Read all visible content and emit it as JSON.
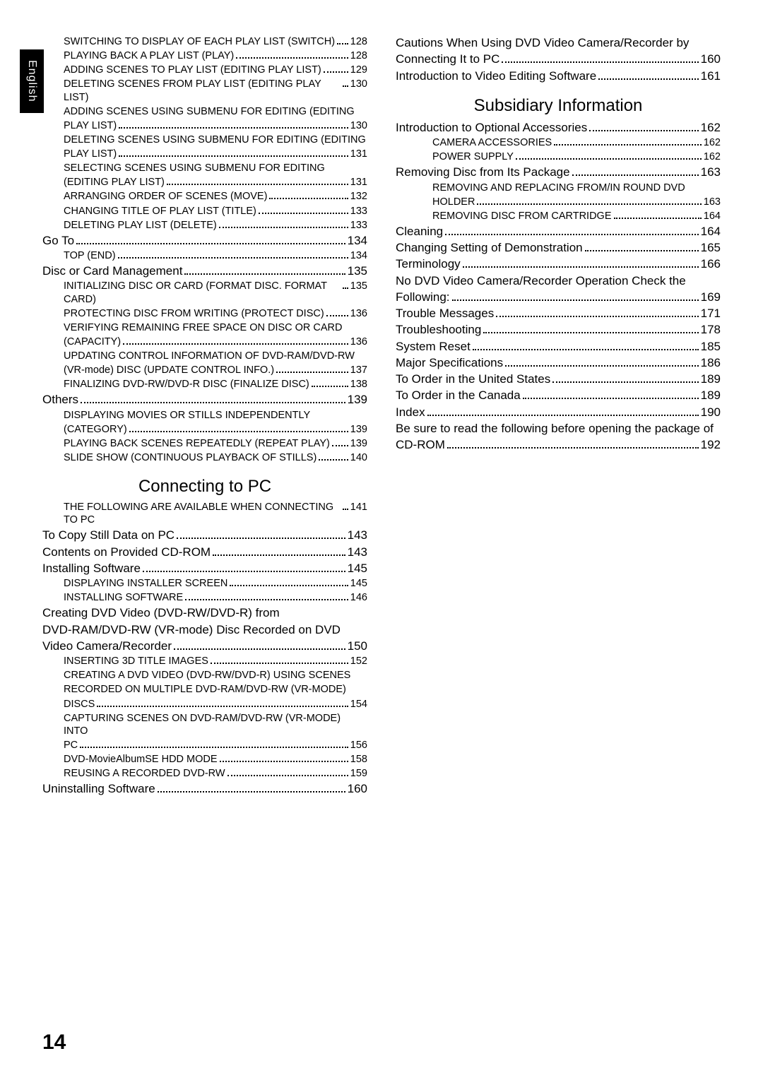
{
  "sideTab": "English",
  "pageNumber": "14",
  "leftColumn": [
    {
      "kind": "entry",
      "size": "small",
      "indent": 1,
      "label": "SWITCHING TO DISPLAY OF EACH PLAY LIST (SWITCH)",
      "page": "128"
    },
    {
      "kind": "entry",
      "size": "small",
      "indent": 1,
      "label": "PLAYING BACK A PLAY LIST (PLAY)",
      "page": "128"
    },
    {
      "kind": "entry",
      "size": "small",
      "indent": 1,
      "label": "ADDING SCENES TO PLAY LIST (EDITING PLAY LIST)",
      "page": "129"
    },
    {
      "kind": "entry",
      "size": "small",
      "indent": 1,
      "label": "DELETING SCENES FROM PLAY LIST (EDITING PLAY LIST)",
      "page": "130"
    },
    {
      "kind": "entry",
      "size": "small",
      "indent": 1,
      "label": "ADDING SCENES USING SUBMENU FOR EDITING (EDITING PLAY LIST)",
      "page": "130"
    },
    {
      "kind": "entry",
      "size": "small",
      "indent": 1,
      "label": "DELETING SCENES USING SUBMENU FOR EDITING (EDITING PLAY LIST)",
      "page": "131"
    },
    {
      "kind": "entry",
      "size": "small",
      "indent": 1,
      "label": "SELECTING SCENES USING SUBMENU FOR EDITING (EDITING PLAY LIST)",
      "page": "131"
    },
    {
      "kind": "entry",
      "size": "small",
      "indent": 1,
      "label": "ARRANGING ORDER OF SCENES (MOVE)",
      "page": "132"
    },
    {
      "kind": "entry",
      "size": "small",
      "indent": 1,
      "label": "CHANGING TITLE OF PLAY LIST (TITLE)",
      "page": "133"
    },
    {
      "kind": "entry",
      "size": "small",
      "indent": 1,
      "label": "DELETING PLAY LIST (DELETE)",
      "page": "133"
    },
    {
      "kind": "entry",
      "size": "large",
      "indent": 0,
      "label": "Go To",
      "page": "134"
    },
    {
      "kind": "entry",
      "size": "small",
      "indent": 1,
      "label": "TOP (END)",
      "page": "134"
    },
    {
      "kind": "entry",
      "size": "large",
      "indent": 0,
      "label": "Disc or Card Management",
      "page": "135"
    },
    {
      "kind": "entry",
      "size": "small",
      "indent": 1,
      "label": "INITIALIZING DISC OR CARD (FORMAT DISC. FORMAT CARD)",
      "page": "135"
    },
    {
      "kind": "entry",
      "size": "small",
      "indent": 1,
      "label": "PROTECTING DISC FROM WRITING (PROTECT DISC)",
      "page": "136"
    },
    {
      "kind": "entry",
      "size": "small",
      "indent": 1,
      "label": "VERIFYING REMAINING FREE SPACE ON DISC OR CARD (CAPACITY)",
      "page": "136"
    },
    {
      "kind": "entry",
      "size": "small",
      "indent": 1,
      "label": "UPDATING CONTROL INFORMATION OF DVD-RAM/DVD-RW (VR-mode) DISC (UPDATE CONTROL INFO.)",
      "page": "137"
    },
    {
      "kind": "entry",
      "size": "small",
      "indent": 1,
      "label": "FINALIZING DVD-RW/DVD-R DISC (FINALIZE DISC)",
      "page": "138"
    },
    {
      "kind": "entry",
      "size": "large",
      "indent": 0,
      "label": "Others",
      "page": "139"
    },
    {
      "kind": "entry",
      "size": "small",
      "indent": 1,
      "label": "DISPLAYING MOVIES OR STILLS INDEPENDENTLY (CATEGORY)",
      "page": "139"
    },
    {
      "kind": "entry",
      "size": "small",
      "indent": 1,
      "label": "PLAYING BACK SCENES REPEATEDLY (REPEAT PLAY)",
      "page": "139"
    },
    {
      "kind": "entry",
      "size": "small",
      "indent": 1,
      "label": "SLIDE SHOW (CONTINUOUS PLAYBACK OF STILLS)",
      "page": "140"
    },
    {
      "kind": "heading",
      "label": "Connecting to PC"
    },
    {
      "kind": "entry",
      "size": "small",
      "indent": 1,
      "label": "THE FOLLOWING ARE AVAILABLE WHEN CONNECTING TO PC",
      "page": "141"
    },
    {
      "kind": "entry",
      "size": "large",
      "indent": 0,
      "label": "To Copy Still Data on PC",
      "page": "143"
    },
    {
      "kind": "entry",
      "size": "large",
      "indent": 0,
      "label": "Contents on Provided CD-ROM",
      "page": "143"
    },
    {
      "kind": "entry",
      "size": "large",
      "indent": 0,
      "label": "Installing Software",
      "page": "145"
    },
    {
      "kind": "entry",
      "size": "small",
      "indent": 1,
      "label": "DISPLAYING INSTALLER SCREEN",
      "page": "145"
    },
    {
      "kind": "entry",
      "size": "small",
      "indent": 1,
      "label": "INSTALLING SOFTWARE",
      "page": "146"
    },
    {
      "kind": "entry",
      "size": "large",
      "indent": 0,
      "label": "Creating DVD Video (DVD-RW/DVD-R) from DVD-RAM/DVD-RW (VR-mode) Disc Recorded on DVD Video Camera/Recorder",
      "page": "150"
    },
    {
      "kind": "entry",
      "size": "small",
      "indent": 1,
      "label": "INSERTING 3D TITLE IMAGES",
      "page": "152"
    },
    {
      "kind": "entry",
      "size": "small",
      "indent": 1,
      "label": "CREATING A DVD VIDEO (DVD-RW/DVD-R) USING SCENES RECORDED ON MULTIPLE DVD-RAM/DVD-RW (VR-MODE) DISCS",
      "page": "154"
    },
    {
      "kind": "entry",
      "size": "small",
      "indent": 1,
      "label": "CAPTURING SCENES ON DVD-RAM/DVD-RW (VR-MODE) INTO PC",
      "page": "156"
    },
    {
      "kind": "entry",
      "size": "small",
      "indent": 1,
      "label": "DVD-MovieAlbumSE HDD MODE",
      "page": "158"
    },
    {
      "kind": "entry",
      "size": "small",
      "indent": 1,
      "label": "REUSING A RECORDED DVD-RW",
      "page": "159"
    },
    {
      "kind": "entry",
      "size": "large",
      "indent": 0,
      "label": "Uninstalling Software",
      "page": "160"
    }
  ],
  "rightColumn": [
    {
      "kind": "entry",
      "size": "large",
      "indent": 0,
      "label": "Cautions When Using DVD Video Camera/Recorder by Connecting It to PC",
      "page": "160"
    },
    {
      "kind": "entry",
      "size": "large",
      "indent": 0,
      "label": "Introduction to Video Editing Software",
      "page": "161"
    },
    {
      "kind": "heading",
      "label": "Subsidiary Information"
    },
    {
      "kind": "entry",
      "size": "large",
      "indent": 0,
      "label": "Introduction to Optional Accessories",
      "page": "162"
    },
    {
      "kind": "entry",
      "size": "small",
      "indent": 2,
      "label": "CAMERA ACCESSORIES",
      "page": "162"
    },
    {
      "kind": "entry",
      "size": "small",
      "indent": 2,
      "label": "POWER SUPPLY",
      "page": "162"
    },
    {
      "kind": "entry",
      "size": "large",
      "indent": 0,
      "label": "Removing Disc from Its Package",
      "page": "163"
    },
    {
      "kind": "entry",
      "size": "small",
      "indent": 2,
      "label": "REMOVING AND REPLACING FROM/IN ROUND DVD HOLDER",
      "page": "163"
    },
    {
      "kind": "entry",
      "size": "small",
      "indent": 2,
      "label": "REMOVING DISC FROM CARTRIDGE",
      "page": "164"
    },
    {
      "kind": "entry",
      "size": "large",
      "indent": 0,
      "label": "Cleaning",
      "page": "164"
    },
    {
      "kind": "entry",
      "size": "large",
      "indent": 0,
      "label": "Changing Setting of Demonstration",
      "page": "165"
    },
    {
      "kind": "entry",
      "size": "large",
      "indent": 0,
      "label": "Terminology",
      "page": "166"
    },
    {
      "kind": "entry",
      "size": "large",
      "indent": 0,
      "label": "No DVD Video Camera/Recorder Operation Check the Following:",
      "page": "169"
    },
    {
      "kind": "entry",
      "size": "large",
      "indent": 0,
      "label": "Trouble Messages",
      "page": "171"
    },
    {
      "kind": "entry",
      "size": "large",
      "indent": 0,
      "label": "Troubleshooting",
      "page": "178"
    },
    {
      "kind": "entry",
      "size": "large",
      "indent": 0,
      "label": "System Reset",
      "page": "185"
    },
    {
      "kind": "entry",
      "size": "large",
      "indent": 0,
      "label": "Major Specifications",
      "page": "186"
    },
    {
      "kind": "entry",
      "size": "large",
      "indent": 0,
      "label": "To Order in the United States",
      "page": "189"
    },
    {
      "kind": "entry",
      "size": "large",
      "indent": 0,
      "label": "To Order in the Canada",
      "page": "189"
    },
    {
      "kind": "entry",
      "size": "large",
      "indent": 0,
      "label": "Index",
      "page": "190"
    },
    {
      "kind": "entry",
      "size": "large",
      "indent": 0,
      "label": "Be sure to read the following before opening the package of CD-ROM",
      "page": "192"
    }
  ]
}
